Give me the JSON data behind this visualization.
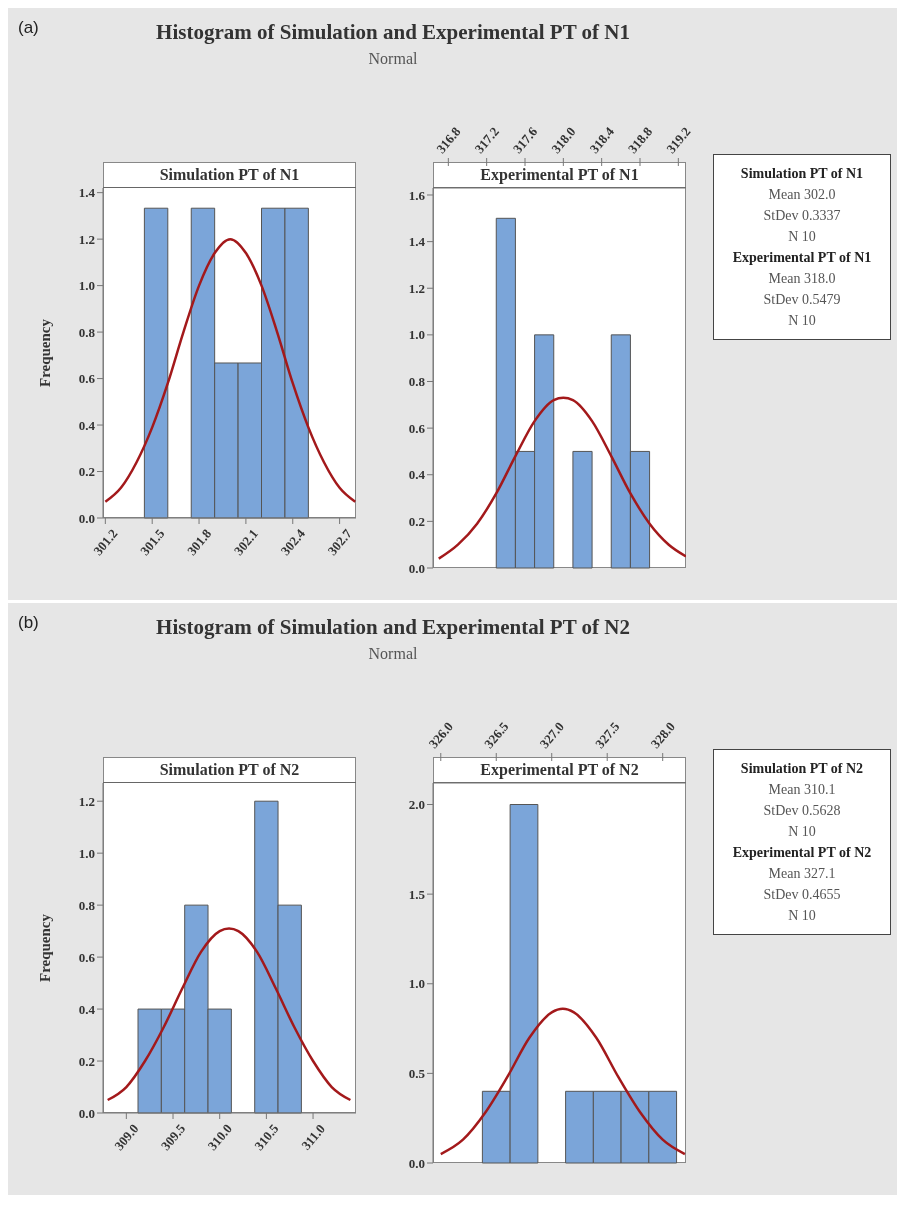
{
  "chart_data": [
    {
      "type": "other",
      "title": "Histogram of Simulation and Experimental PT of N1",
      "subtitle": "Normal",
      "annotations": [
        "(a)",
        "Simulation PT of N1",
        "Mean 302.0",
        "StDev 0.3337",
        "N 10",
        "Experimental PT of N1",
        "Mean 318.0",
        "StDev 0.5479",
        "N 10"
      ]
    },
    {
      "type": "histogram",
      "title": "Simulation PT of N1",
      "ylabel": "Frequency",
      "bins": [
        301.45,
        301.6,
        301.75,
        301.9,
        302.05,
        302.2,
        302.35,
        302.5
      ],
      "values": [
        1.333,
        0,
        1.333,
        0.667,
        0.667,
        1.333,
        1.333
      ],
      "color": "#7ba5d9",
      "series": [
        {
          "type": "line",
          "color": "#a3191b",
          "x": [
            301.2,
            301.3,
            301.4,
            301.5,
            301.6,
            301.7,
            301.8,
            301.9,
            302.0,
            302.1,
            302.2,
            302.3,
            302.4,
            302.5,
            302.6,
            302.7,
            302.8
          ],
          "values": [
            0.07,
            0.13,
            0.24,
            0.39,
            0.58,
            0.8,
            1.0,
            1.14,
            1.2,
            1.14,
            1.0,
            0.8,
            0.58,
            0.39,
            0.24,
            0.13,
            0.07
          ]
        }
      ],
      "xlim": [
        301.185,
        302.805
      ],
      "xticks": [
        301.2,
        301.5,
        301.8,
        302.1,
        302.4,
        302.7
      ],
      "ylim": [
        0,
        1.42
      ],
      "yticks": [
        {
          "value": 0,
          "label": "0.0"
        },
        0.2,
        0.4,
        0.6,
        0.8,
        {
          "value": 1,
          "label": "1.0"
        },
        1.2,
        1.4
      ]
    },
    {
      "type": "histogram",
      "title": "Experimental PT of N1",
      "bins": [
        317.3,
        317.5,
        317.7,
        317.9,
        318.1,
        318.3,
        318.5,
        318.7,
        318.9
      ],
      "values": [
        1.5,
        0.5,
        1.0,
        0,
        0.5,
        0,
        1.0,
        0.5
      ],
      "color": "#7ba5d9",
      "series": [
        {
          "type": "line",
          "color": "#a3191b",
          "x": [
            316.7,
            316.9,
            317.1,
            317.3,
            317.5,
            317.7,
            317.9,
            318.0,
            318.1,
            318.3,
            318.5,
            318.7,
            318.9,
            319.1,
            319.28
          ],
          "values": [
            0.04,
            0.1,
            0.19,
            0.32,
            0.48,
            0.63,
            0.72,
            0.73,
            0.72,
            0.63,
            0.48,
            0.32,
            0.19,
            0.1,
            0.05
          ]
        }
      ],
      "xlim": [
        316.64,
        319.28
      ],
      "xticks": [
        316.8,
        317.2,
        317.6,
        {
          "value": 318,
          "label": "318.0"
        },
        318.4,
        318.8,
        319.2
      ],
      "ylim": [
        0,
        1.63
      ],
      "yticks": [
        {
          "value": 0,
          "label": "0.0"
        },
        0.2,
        0.4,
        0.6,
        0.8,
        {
          "value": 1,
          "label": "1.0"
        },
        1.2,
        1.4,
        1.6
      ]
    },
    {
      "type": "other",
      "title": "Histogram of Simulation and Experimental PT of N2",
      "subtitle": "Normal",
      "annotations": [
        "(b)",
        "Simulation PT of N2",
        "Mean 310.1",
        "StDev 0.5628",
        "N 10",
        "Experimental PT of N2",
        "Mean 327.1",
        "StDev 0.4655",
        "N 10"
      ]
    },
    {
      "type": "histogram",
      "title": "Simulation PT of N2",
      "ylabel": "Frequency",
      "bins": [
        309.125,
        309.375,
        309.625,
        309.875,
        310.125,
        310.375,
        310.625,
        310.875
      ],
      "values": [
        0.4,
        0.4,
        0.8,
        0.4,
        0,
        1.2,
        0.8
      ],
      "color": "#7ba5d9",
      "series": [
        {
          "type": "line",
          "color": "#a3191b",
          "x": [
            308.8,
            309.0,
            309.2,
            309.4,
            309.6,
            309.8,
            310.0,
            310.1,
            310.2,
            310.4,
            310.6,
            310.8,
            311.0,
            311.2,
            311.4
          ],
          "values": [
            0.05,
            0.1,
            0.2,
            0.33,
            0.48,
            0.62,
            0.7,
            0.71,
            0.7,
            0.62,
            0.48,
            0.33,
            0.2,
            0.1,
            0.05
          ]
        }
      ],
      "xlim": [
        308.75,
        311.46
      ],
      "xticks": [
        {
          "value": 309,
          "label": "309.0"
        },
        309.5,
        {
          "value": 310,
          "label": "310.0"
        },
        310.5,
        {
          "value": 311,
          "label": "311.0"
        }
      ],
      "ylim": [
        0,
        1.27
      ],
      "yticks": [
        {
          "value": 0,
          "label": "0.0"
        },
        0.2,
        0.4,
        0.6,
        0.8,
        {
          "value": 1,
          "label": "1.0"
        },
        1.2
      ]
    },
    {
      "type": "histogram",
      "title": "Experimental PT of N2",
      "bins": [
        326.375,
        326.625,
        326.875,
        327.125,
        327.375,
        327.625,
        327.875,
        328.125
      ],
      "values": [
        0.4,
        2.0,
        0,
        0.4,
        0.4,
        0.4,
        0.4
      ],
      "color": "#7ba5d9",
      "series": [
        {
          "type": "line",
          "color": "#a3191b",
          "x": [
            326.0,
            326.2,
            326.4,
            326.6,
            326.8,
            327.0,
            327.1,
            327.2,
            327.4,
            327.6,
            327.8,
            328.0,
            328.2
          ],
          "values": [
            0.05,
            0.13,
            0.28,
            0.48,
            0.7,
            0.84,
            0.86,
            0.84,
            0.7,
            0.48,
            0.28,
            0.13,
            0.05
          ]
        }
      ],
      "xlim": [
        325.93,
        328.21
      ],
      "xticks": [
        {
          "value": 326,
          "label": "326.0"
        },
        326.5,
        {
          "value": 327,
          "label": "327.0"
        },
        327.5,
        {
          "value": 328,
          "label": "328.0"
        }
      ],
      "ylim": [
        0,
        2.12
      ],
      "yticks": [
        {
          "value": 0,
          "label": "0.0"
        },
        0.5,
        {
          "value": 1,
          "label": "1.0"
        },
        1.5,
        {
          "value": 2,
          "label": "2.0"
        }
      ]
    }
  ]
}
